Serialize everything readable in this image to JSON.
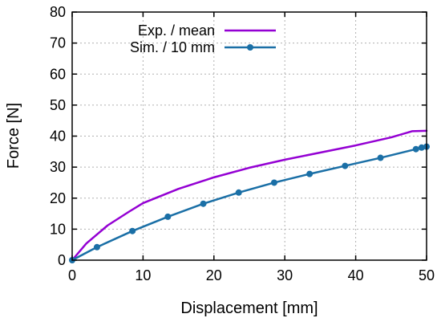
{
  "chart_data": {
    "type": "line",
    "xlabel": "Displacement [mm]",
    "ylabel": "Force [N]",
    "xlim": [
      0,
      50
    ],
    "ylim": [
      0,
      80
    ],
    "xticks": [
      0,
      10,
      20,
      30,
      40,
      50
    ],
    "yticks": [
      0,
      10,
      20,
      30,
      40,
      50,
      60,
      70,
      80
    ],
    "grid": true,
    "legend_position": "top-left",
    "series": [
      {
        "name": "Exp. / mean",
        "color": "#9400d3",
        "marker": "none",
        "x": [
          0,
          2,
          5,
          8,
          10,
          15,
          20,
          25,
          30,
          35,
          40,
          45,
          48,
          50
        ],
        "y": [
          0,
          5.4,
          11.2,
          15.6,
          18.4,
          23.0,
          26.7,
          29.8,
          32.4,
          34.7,
          37.0,
          39.6,
          41.6,
          41.7
        ]
      },
      {
        "name": "Sim. / 10 mm",
        "color": "#1a6fa6",
        "marker": "circle",
        "x": [
          0,
          3.5,
          8.5,
          13.5,
          18.5,
          23.5,
          28.5,
          33.5,
          38.5,
          43.5,
          48.5,
          49.3,
          50
        ],
        "y": [
          0,
          4.2,
          9.4,
          14.0,
          18.2,
          21.8,
          25.0,
          27.8,
          30.4,
          33.0,
          35.8,
          36.3,
          36.6
        ]
      }
    ]
  }
}
